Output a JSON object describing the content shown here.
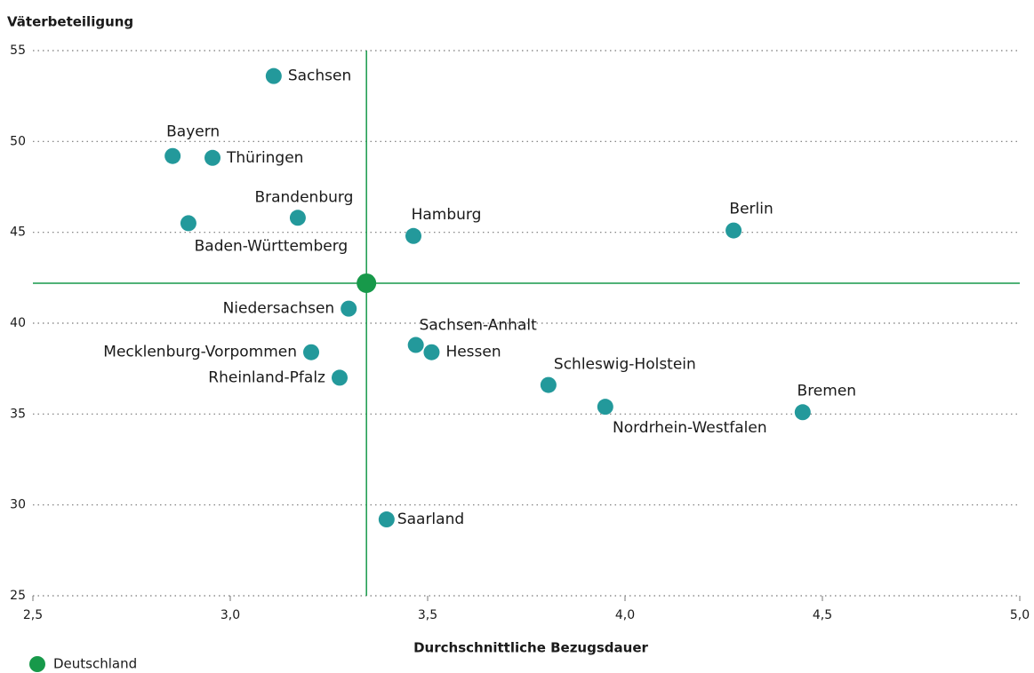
{
  "chart_data": {
    "type": "scatter",
    "ylabel": "Väterbeteiligung",
    "xlabel": "Durchschnittliche Bezugsdauer",
    "xlim": [
      2.5,
      5.0
    ],
    "ylim": [
      25,
      55
    ],
    "xticks": [
      {
        "value": 2.5,
        "label": "2,5"
      },
      {
        "value": 3.0,
        "label": "3,0"
      },
      {
        "value": 3.5,
        "label": "3,5"
      },
      {
        "value": 4.0,
        "label": "4,0"
      },
      {
        "value": 4.5,
        "label": "4,5"
      },
      {
        "value": 5.0,
        "label": "5,0"
      }
    ],
    "yticks": [
      25,
      30,
      35,
      40,
      45,
      50,
      55
    ],
    "grid": true,
    "color": "#23999b",
    "labels": [
      "Sachsen",
      "Bayern",
      "Thüringen",
      "Brandenburg",
      "Baden-Württemberg",
      "Hamburg",
      "Berlin",
      "Niedersachsen",
      "Sachsen-Anhalt",
      "Hessen",
      "Mecklenburg-Vorpommen",
      "Rheinland-Pfalz",
      "Schleswig-Holstein",
      "Nordrhein-Westfalen",
      "Bremen",
      "Saarland"
    ],
    "x": [
      3.11,
      2.854,
      2.955,
      3.171,
      2.894,
      3.464,
      4.275,
      3.3,
      3.47,
      3.51,
      3.205,
      3.277,
      3.806,
      3.95,
      4.45,
      3.396
    ],
    "y": [
      53.6,
      49.2,
      49.1,
      45.8,
      45.5,
      44.8,
      45.1,
      40.8,
      38.8,
      38.4,
      38.4,
      37.0,
      36.6,
      35.4,
      35.1,
      29.2
    ],
    "reference": {
      "name": "Deutschland",
      "x": 3.345,
      "y": 42.2,
      "color": "#17994a"
    }
  }
}
